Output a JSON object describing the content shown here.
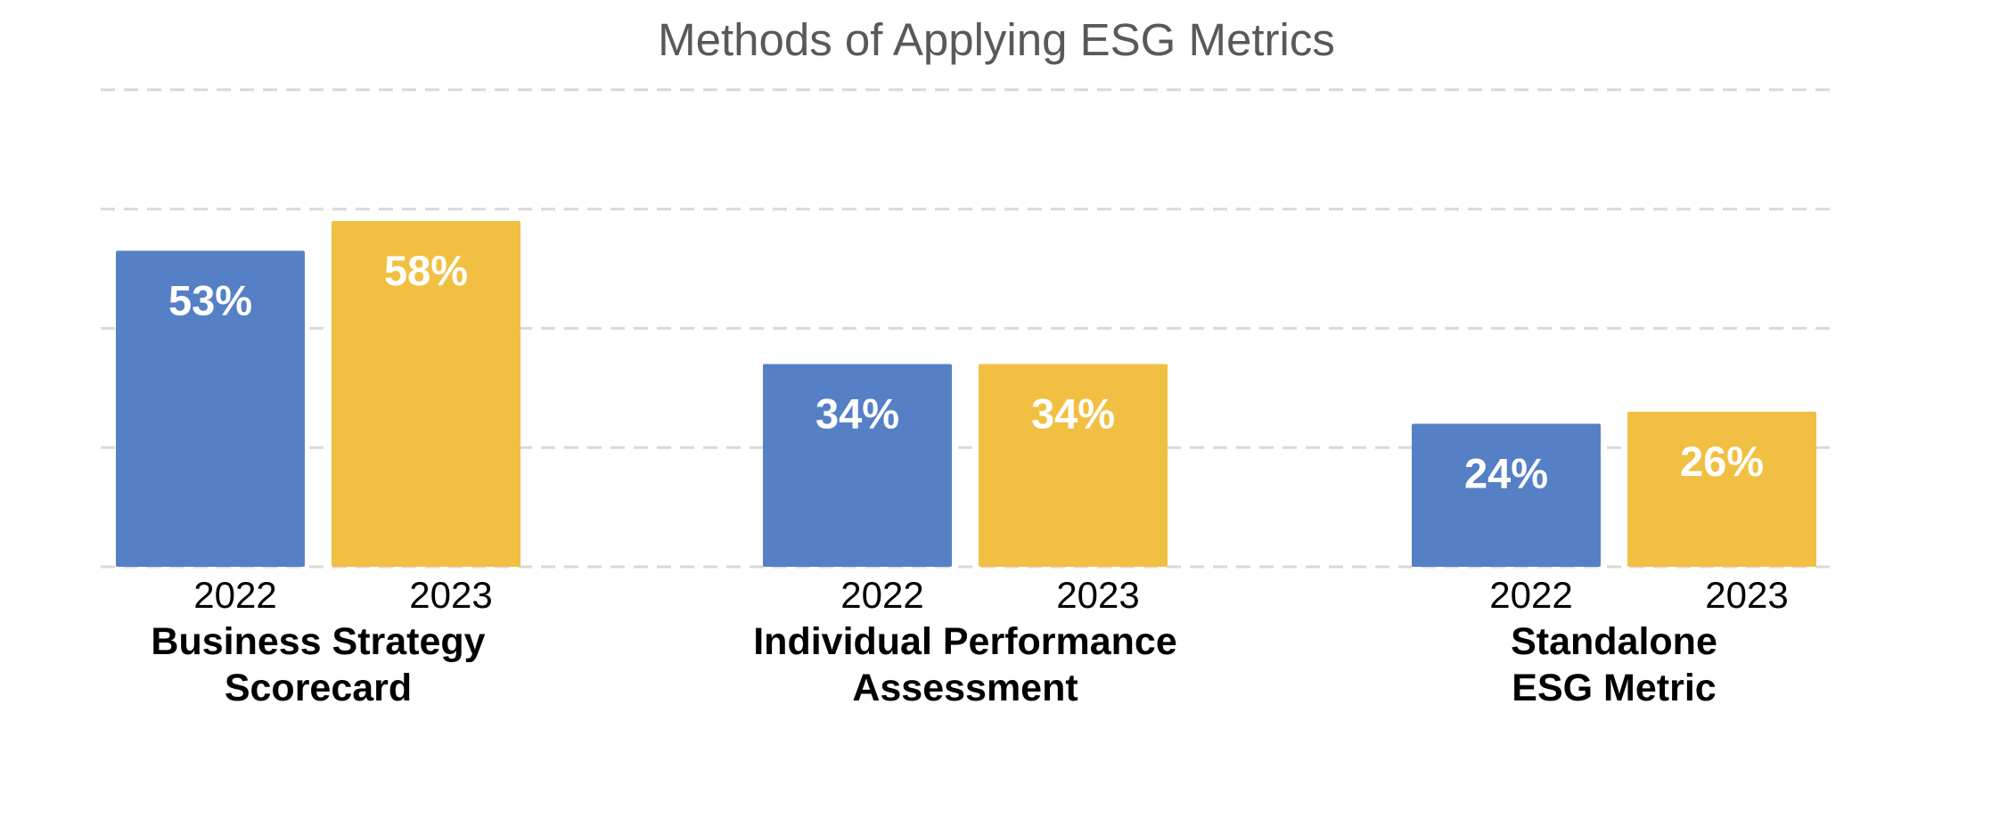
{
  "chart_data": {
    "type": "bar",
    "title": "Methods of Applying ESG Metrics",
    "ylim": [
      0,
      80
    ],
    "grid": true,
    "colors": {
      "2022": "#5580C6",
      "2023": "#F1C043",
      "grid": "#d9d9d9"
    },
    "groups": [
      {
        "category_lines": [
          "Business Strategy",
          "Scorecard"
        ],
        "bars": [
          {
            "year": "2022",
            "value": 53,
            "label": "53%"
          },
          {
            "year": "2023",
            "value": 58,
            "label": "58%"
          }
        ]
      },
      {
        "category_lines": [
          "Individual Performance",
          "Assessment"
        ],
        "bars": [
          {
            "year": "2022",
            "value": 34,
            "label": "34%"
          },
          {
            "year": "2023",
            "value": 34,
            "label": "34%"
          }
        ]
      },
      {
        "category_lines": [
          "Standalone",
          "ESG Metric"
        ],
        "bars": [
          {
            "year": "2022",
            "value": 24,
            "label": "24%"
          },
          {
            "year": "2023",
            "value": 26,
            "label": "26%"
          }
        ]
      }
    ]
  }
}
